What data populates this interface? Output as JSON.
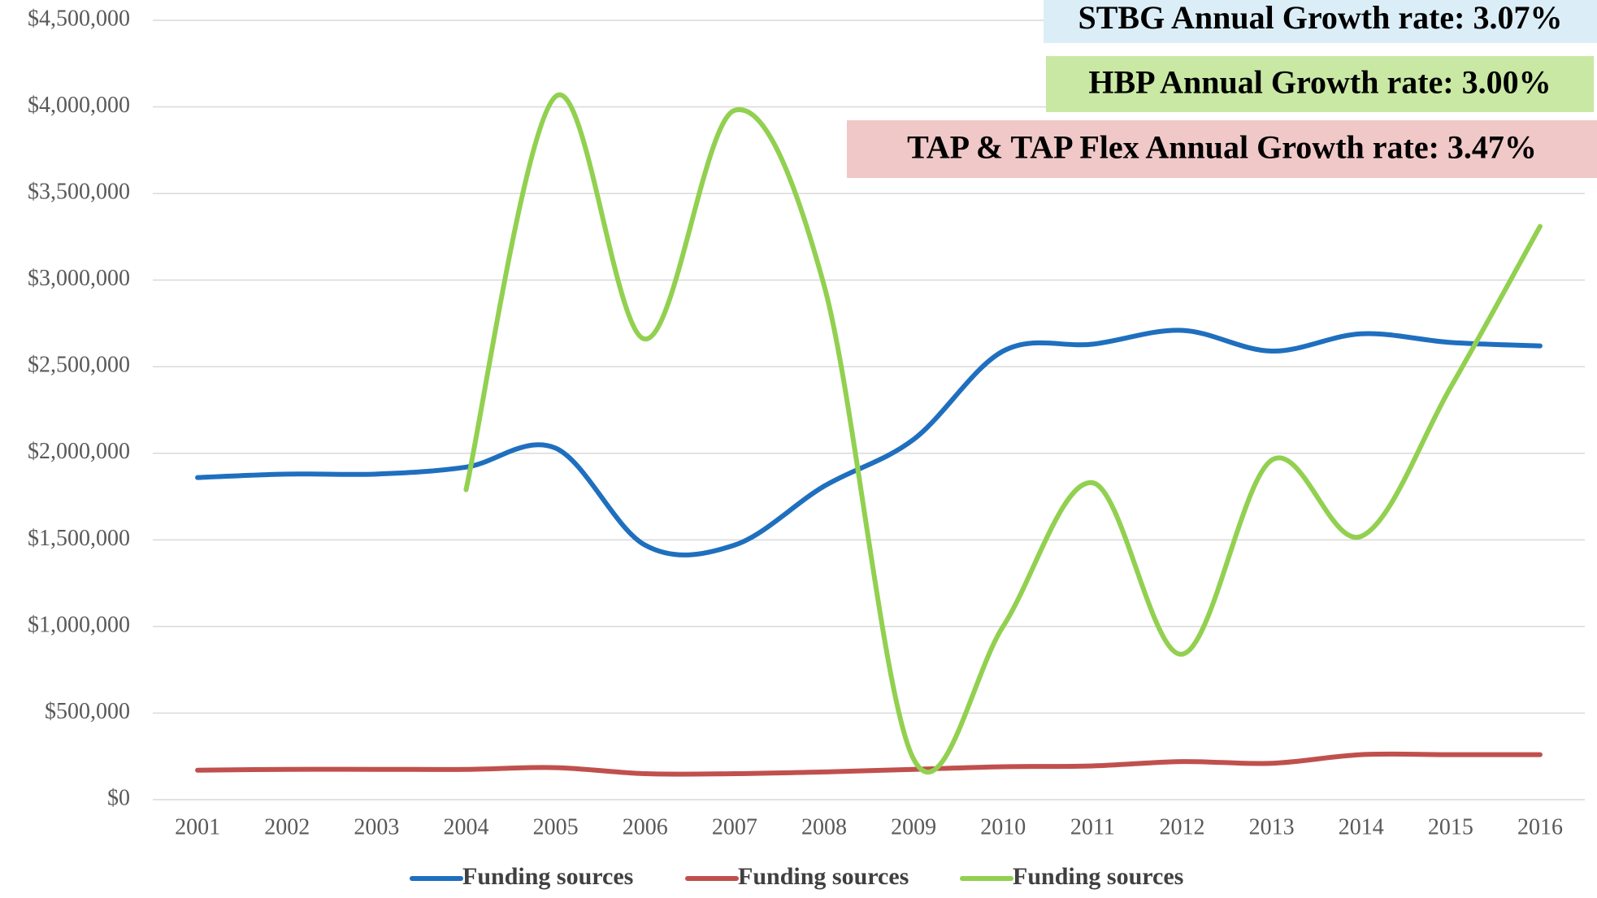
{
  "chart_data": {
    "type": "line",
    "categories": [
      "2001",
      "2002",
      "2003",
      "2004",
      "2005",
      "2006",
      "2007",
      "2008",
      "2009",
      "2010",
      "2011",
      "2012",
      "2013",
      "2014",
      "2015",
      "2016"
    ],
    "series": [
      {
        "name": "Funding sources",
        "color": "#1f6fbf",
        "values": [
          1860000,
          1880000,
          1880000,
          1920000,
          2030000,
          1470000,
          1470000,
          1810000,
          2080000,
          2590000,
          2630000,
          2710000,
          2590000,
          2690000,
          2640000,
          2620000
        ]
      },
      {
        "name": "Funding sources",
        "color": "#c0504d",
        "values": [
          170000,
          175000,
          175000,
          175000,
          185000,
          150000,
          150000,
          160000,
          175000,
          190000,
          195000,
          220000,
          210000,
          260000,
          260000,
          260000
        ]
      },
      {
        "name": "Funding sources",
        "color": "#92d050",
        "values": [
          null,
          null,
          null,
          1790000,
          4060000,
          2660000,
          3980000,
          2970000,
          235000,
          1000000,
          1830000,
          840000,
          1960000,
          1520000,
          2380000,
          3310000
        ]
      }
    ],
    "ylim": [
      0,
      4500000
    ],
    "yticks": [
      {
        "value": 0,
        "label": "$0"
      },
      {
        "value": 500000,
        "label": "$500,000"
      },
      {
        "value": 1000000,
        "label": "$1,000,000"
      },
      {
        "value": 1500000,
        "label": "$1,500,000"
      },
      {
        "value": 2000000,
        "label": "$2,000,000"
      },
      {
        "value": 2500000,
        "label": "$2,500,000"
      },
      {
        "value": 3000000,
        "label": "$3,000,000"
      },
      {
        "value": 3500000,
        "label": "$3,500,000"
      },
      {
        "value": 4000000,
        "label": "$4,000,000"
      },
      {
        "value": 4500000,
        "label": "$4,500,000"
      }
    ],
    "grid": true,
    "legend": "bottom",
    "annotations": [
      {
        "text": "STBG Annual Growth rate: 3.07%",
        "color": "#dbeef8"
      },
      {
        "text": "HBP Annual Growth rate: 3.00%",
        "color": "#c9e8a4"
      },
      {
        "text": "TAP & TAP Flex Annual Growth rate: 3.47%",
        "color": "#f0c8c8"
      }
    ]
  }
}
